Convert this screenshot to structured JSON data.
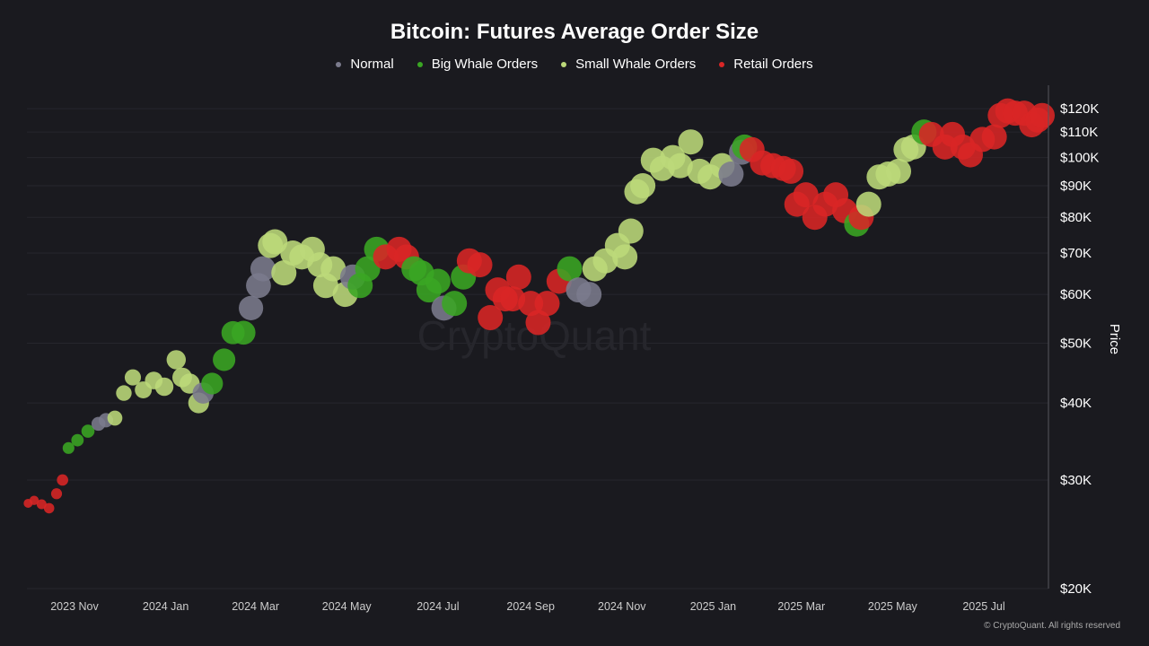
{
  "chart_data": {
    "type": "scatter",
    "title": "Bitcoin: Futures Average Order Size",
    "ylabel": "Price",
    "yscale": "log",
    "ylim": [
      20000,
      125000
    ],
    "xlim": [
      "2023-10-01",
      "2025-08-12"
    ],
    "grid": true,
    "legend_placement": "top-center",
    "legend": [
      {
        "key": "N",
        "name": "Normal",
        "color": "#7b7b8d"
      },
      {
        "key": "G",
        "name": "Big Whale Orders",
        "color": "#3aa623"
      },
      {
        "key": "Y",
        "name": "Small Whale Orders",
        "color": "#bcd97a"
      },
      {
        "key": "R",
        "name": "Retail Orders",
        "color": "#d92626"
      }
    ],
    "x_ticks": [
      {
        "date": "2023-11-01",
        "label": "2023 Nov"
      },
      {
        "date": "2024-01-01",
        "label": "2024 Jan"
      },
      {
        "date": "2024-03-01",
        "label": "2024 Mar"
      },
      {
        "date": "2024-05-01",
        "label": "2024 May"
      },
      {
        "date": "2024-07-01",
        "label": "2024 Jul"
      },
      {
        "date": "2024-09-01",
        "label": "2024 Sep"
      },
      {
        "date": "2024-11-01",
        "label": "2024 Nov"
      },
      {
        "date": "2025-01-01",
        "label": "2025 Jan"
      },
      {
        "date": "2025-03-01",
        "label": "2025 Mar"
      },
      {
        "date": "2025-05-01",
        "label": "2025 May"
      },
      {
        "date": "2025-07-01",
        "label": "2025 Jul"
      }
    ],
    "y_ticks": [
      {
        "value": 20000,
        "label": "$20K"
      },
      {
        "value": 30000,
        "label": "$30K"
      },
      {
        "value": 40000,
        "label": "$40K"
      },
      {
        "value": 50000,
        "label": "$50K"
      },
      {
        "value": 60000,
        "label": "$60K"
      },
      {
        "value": 70000,
        "label": "$70K"
      },
      {
        "value": 80000,
        "label": "$80K"
      },
      {
        "value": 90000,
        "label": "$90K"
      },
      {
        "value": 100000,
        "label": "$100K"
      },
      {
        "value": 110000,
        "label": "$110K"
      },
      {
        "value": 120000,
        "label": "$120K"
      }
    ],
    "points": [
      [
        "2023-10-01",
        27500,
        "R"
      ],
      [
        "2023-10-05",
        27800,
        "R"
      ],
      [
        "2023-10-10",
        27400,
        "R"
      ],
      [
        "2023-10-15",
        27000,
        "R"
      ],
      [
        "2023-10-20",
        28500,
        "R"
      ],
      [
        "2023-10-24",
        30000,
        "R"
      ],
      [
        "2023-10-28",
        33800,
        "G"
      ],
      [
        "2023-11-03",
        34800,
        "G"
      ],
      [
        "2023-11-10",
        36000,
        "G"
      ],
      [
        "2023-11-17",
        37000,
        "N"
      ],
      [
        "2023-11-22",
        37500,
        "N"
      ],
      [
        "2023-11-28",
        37800,
        "Y"
      ],
      [
        "2023-12-04",
        41500,
        "Y"
      ],
      [
        "2023-12-10",
        44000,
        "Y"
      ],
      [
        "2023-12-17",
        42000,
        "Y"
      ],
      [
        "2023-12-24",
        43500,
        "Y"
      ],
      [
        "2023-12-31",
        42500,
        "Y"
      ],
      [
        "2024-01-08",
        47000,
        "Y"
      ],
      [
        "2024-01-12",
        44000,
        "Y"
      ],
      [
        "2024-01-17",
        43000,
        "Y"
      ],
      [
        "2024-01-23",
        40000,
        "Y"
      ],
      [
        "2024-01-26",
        41500,
        "N"
      ],
      [
        "2024-02-01",
        43000,
        "G"
      ],
      [
        "2024-02-09",
        47000,
        "G"
      ],
      [
        "2024-02-15",
        52000,
        "G"
      ],
      [
        "2024-02-22",
        52000,
        "G"
      ],
      [
        "2024-02-27",
        57000,
        "N"
      ],
      [
        "2024-03-03",
        62000,
        "N"
      ],
      [
        "2024-03-06",
        66000,
        "N"
      ],
      [
        "2024-03-11",
        72000,
        "Y"
      ],
      [
        "2024-03-14",
        73000,
        "Y"
      ],
      [
        "2024-03-20",
        65000,
        "Y"
      ],
      [
        "2024-03-26",
        70000,
        "Y"
      ],
      [
        "2024-04-01",
        69000,
        "Y"
      ],
      [
        "2024-04-08",
        71000,
        "Y"
      ],
      [
        "2024-04-13",
        67000,
        "Y"
      ],
      [
        "2024-04-17",
        62000,
        "Y"
      ],
      [
        "2024-04-22",
        66000,
        "Y"
      ],
      [
        "2024-04-30",
        60000,
        "Y"
      ],
      [
        "2024-05-05",
        64000,
        "N"
      ],
      [
        "2024-05-10",
        62000,
        "G"
      ],
      [
        "2024-05-15",
        66000,
        "G"
      ],
      [
        "2024-05-21",
        71000,
        "G"
      ],
      [
        "2024-05-27",
        69000,
        "R"
      ],
      [
        "2024-06-05",
        71000,
        "R"
      ],
      [
        "2024-06-10",
        69000,
        "R"
      ],
      [
        "2024-06-15",
        66000,
        "G"
      ],
      [
        "2024-06-20",
        65000,
        "G"
      ],
      [
        "2024-06-25",
        61000,
        "G"
      ],
      [
        "2024-07-01",
        63000,
        "G"
      ],
      [
        "2024-07-05",
        57000,
        "N"
      ],
      [
        "2024-07-12",
        58000,
        "G"
      ],
      [
        "2024-07-18",
        64000,
        "G"
      ],
      [
        "2024-07-22",
        68000,
        "R"
      ],
      [
        "2024-07-29",
        67000,
        "R"
      ],
      [
        "2024-08-05",
        55000,
        "R"
      ],
      [
        "2024-08-10",
        61000,
        "R"
      ],
      [
        "2024-08-15",
        59000,
        "R"
      ],
      [
        "2024-08-20",
        59000,
        "R"
      ],
      [
        "2024-08-24",
        64000,
        "R"
      ],
      [
        "2024-09-01",
        58000,
        "R"
      ],
      [
        "2024-09-06",
        54000,
        "R"
      ],
      [
        "2024-09-12",
        58000,
        "R"
      ],
      [
        "2024-09-20",
        63000,
        "R"
      ],
      [
        "2024-09-27",
        66000,
        "G"
      ],
      [
        "2024-10-03",
        61000,
        "N"
      ],
      [
        "2024-10-10",
        60000,
        "N"
      ],
      [
        "2024-10-14",
        66000,
        "Y"
      ],
      [
        "2024-10-21",
        68000,
        "Y"
      ],
      [
        "2024-10-29",
        72000,
        "Y"
      ],
      [
        "2024-11-03",
        69000,
        "Y"
      ],
      [
        "2024-11-07",
        76000,
        "Y"
      ],
      [
        "2024-11-11",
        88000,
        "Y"
      ],
      [
        "2024-11-15",
        90000,
        "Y"
      ],
      [
        "2024-11-22",
        99000,
        "Y"
      ],
      [
        "2024-11-28",
        96000,
        "Y"
      ],
      [
        "2024-12-05",
        100000,
        "Y"
      ],
      [
        "2024-12-10",
        97000,
        "Y"
      ],
      [
        "2024-12-17",
        106000,
        "Y"
      ],
      [
        "2024-12-23",
        95000,
        "Y"
      ],
      [
        "2024-12-30",
        93000,
        "Y"
      ],
      [
        "2025-01-07",
        97000,
        "Y"
      ],
      [
        "2025-01-13",
        94000,
        "N"
      ],
      [
        "2025-01-20",
        102000,
        "N"
      ],
      [
        "2025-01-22",
        104000,
        "G"
      ],
      [
        "2025-01-27",
        103000,
        "R"
      ],
      [
        "2025-02-03",
        98000,
        "R"
      ],
      [
        "2025-02-10",
        97000,
        "R"
      ],
      [
        "2025-02-17",
        96000,
        "R"
      ],
      [
        "2025-02-22",
        95000,
        "R"
      ],
      [
        "2025-02-26",
        84000,
        "R"
      ],
      [
        "2025-03-04",
        87000,
        "R"
      ],
      [
        "2025-03-10",
        80000,
        "R"
      ],
      [
        "2025-03-17",
        84000,
        "R"
      ],
      [
        "2025-03-24",
        87000,
        "R"
      ],
      [
        "2025-03-30",
        82000,
        "R"
      ],
      [
        "2025-04-07",
        78000,
        "G"
      ],
      [
        "2025-04-10",
        80000,
        "R"
      ],
      [
        "2025-04-15",
        84000,
        "Y"
      ],
      [
        "2025-04-22",
        93000,
        "Y"
      ],
      [
        "2025-04-28",
        94000,
        "Y"
      ],
      [
        "2025-05-05",
        95000,
        "Y"
      ],
      [
        "2025-05-10",
        103000,
        "Y"
      ],
      [
        "2025-05-15",
        104000,
        "Y"
      ],
      [
        "2025-05-22",
        110000,
        "G"
      ],
      [
        "2025-05-27",
        109000,
        "R"
      ],
      [
        "2025-06-05",
        104000,
        "R"
      ],
      [
        "2025-06-10",
        109000,
        "R"
      ],
      [
        "2025-06-17",
        104000,
        "R"
      ],
      [
        "2025-06-22",
        101000,
        "R"
      ],
      [
        "2025-06-30",
        107000,
        "R"
      ],
      [
        "2025-07-08",
        108000,
        "R"
      ],
      [
        "2025-07-12",
        117000,
        "R"
      ],
      [
        "2025-07-17",
        119000,
        "R"
      ],
      [
        "2025-07-22",
        118000,
        "R"
      ],
      [
        "2025-07-28",
        118000,
        "R"
      ],
      [
        "2025-08-02",
        113000,
        "R"
      ],
      [
        "2025-08-06",
        115000,
        "R"
      ],
      [
        "2025-08-09",
        117000,
        "R"
      ]
    ]
  },
  "watermark": "CryptoQuant",
  "footer": "© CryptoQuant. All rights reserved"
}
